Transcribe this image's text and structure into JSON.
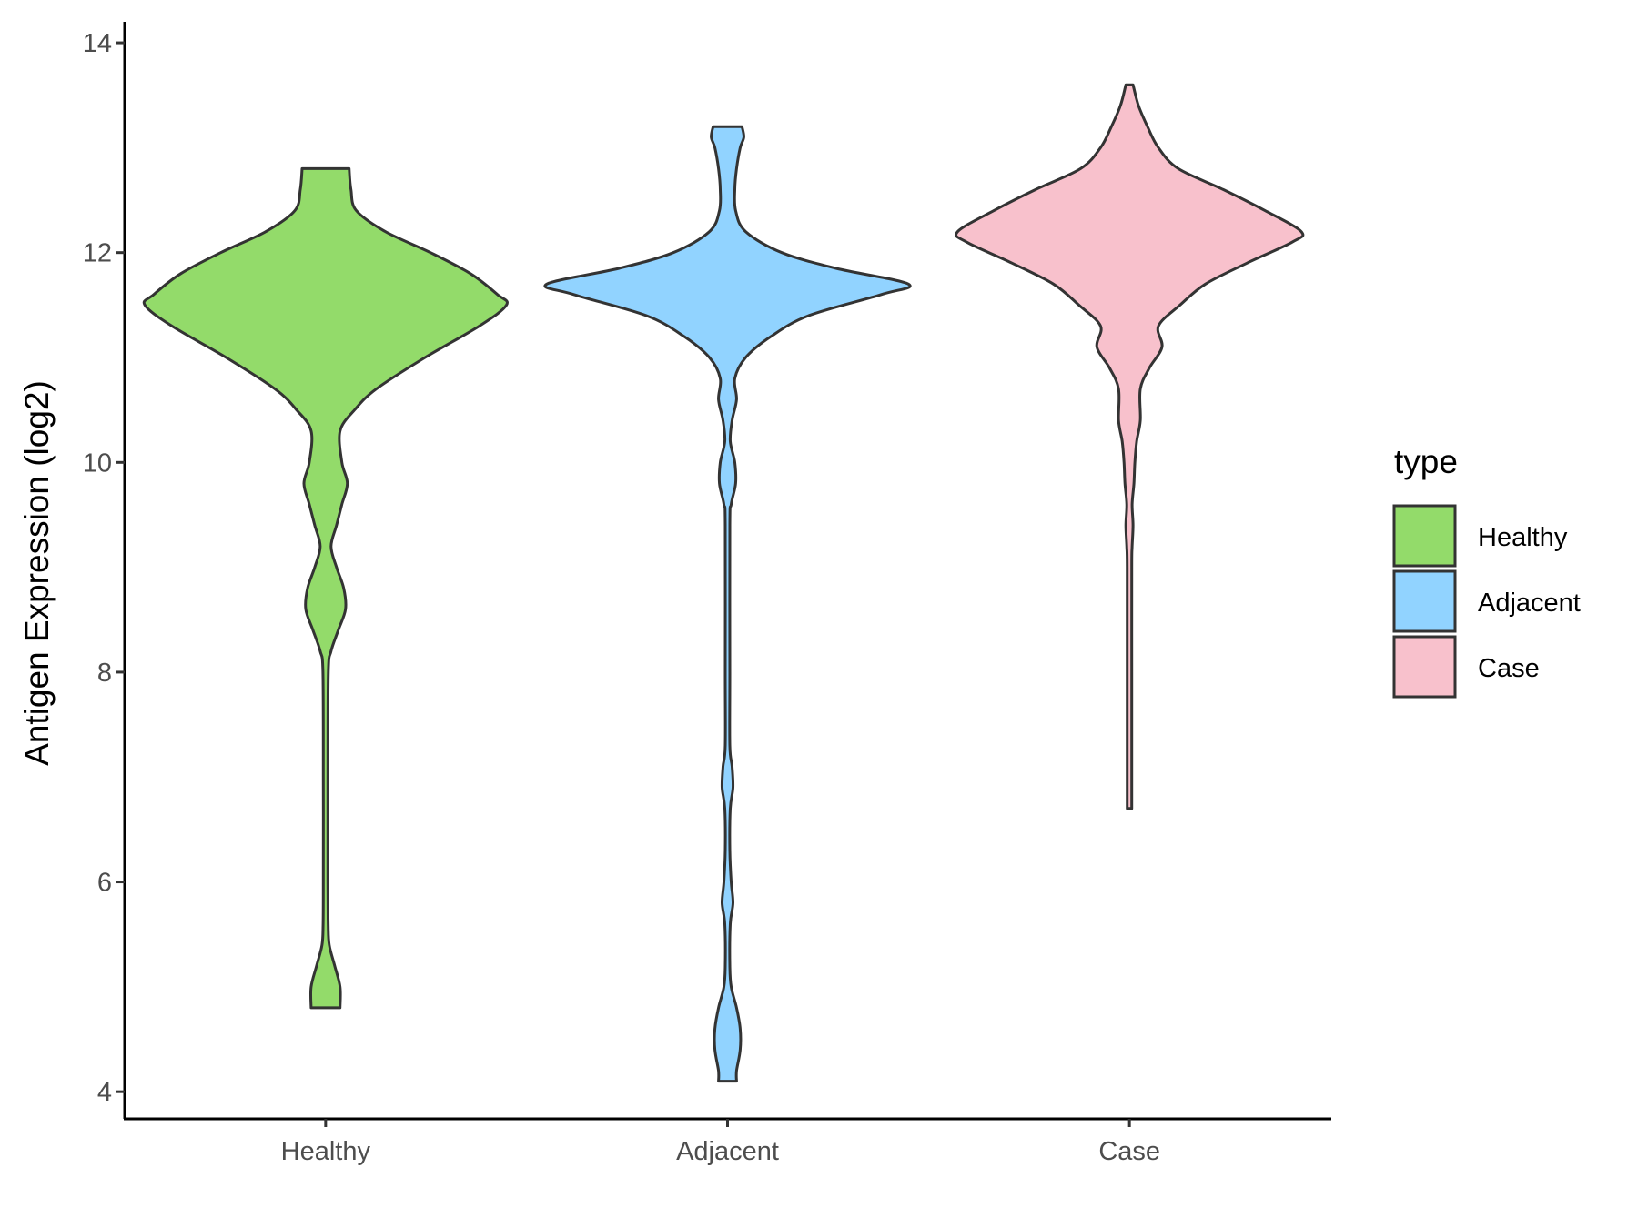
{
  "chart_data": {
    "type": "violin",
    "title": "",
    "xlabel": "",
    "ylabel": "Antigen Expression (log2)",
    "ylim": [
      3.75,
      14.2
    ],
    "yticks": [
      4,
      6,
      8,
      10,
      12,
      14
    ],
    "categories": [
      "Healthy",
      "Adjacent",
      "Case"
    ],
    "legend": {
      "title": "type",
      "placement": "right",
      "entries": [
        {
          "label": "Healthy",
          "color": "#93DB6A"
        },
        {
          "label": "Adjacent",
          "color": "#91D3FF"
        },
        {
          "label": "Case",
          "color": "#F8C1CC"
        }
      ]
    },
    "series": [
      {
        "category": "Healthy",
        "color": "#93DB6A",
        "range": [
          4.8,
          12.8
        ],
        "profile": [
          [
            12.8,
            0.13
          ],
          [
            12.6,
            0.14
          ],
          [
            12.4,
            0.17
          ],
          [
            12.2,
            0.33
          ],
          [
            12.0,
            0.58
          ],
          [
            11.8,
            0.8
          ],
          [
            11.6,
            0.95
          ],
          [
            11.5,
            1.0
          ],
          [
            11.3,
            0.85
          ],
          [
            11.0,
            0.55
          ],
          [
            10.7,
            0.28
          ],
          [
            10.5,
            0.16
          ],
          [
            10.3,
            0.08
          ],
          [
            10.0,
            0.09
          ],
          [
            9.8,
            0.12
          ],
          [
            9.6,
            0.09
          ],
          [
            9.4,
            0.06
          ],
          [
            9.2,
            0.03
          ],
          [
            9.0,
            0.06
          ],
          [
            8.8,
            0.1
          ],
          [
            8.6,
            0.11
          ],
          [
            8.4,
            0.07
          ],
          [
            8.2,
            0.03
          ],
          [
            8.0,
            0.015
          ],
          [
            7.0,
            0.012
          ],
          [
            6.0,
            0.012
          ],
          [
            5.6,
            0.014
          ],
          [
            5.4,
            0.02
          ],
          [
            5.2,
            0.05
          ],
          [
            5.0,
            0.08
          ],
          [
            4.8,
            0.08
          ]
        ]
      },
      {
        "category": "Adjacent",
        "color": "#91D3FF",
        "range": [
          4.1,
          13.2
        ],
        "profile": [
          [
            13.2,
            0.08
          ],
          [
            13.1,
            0.09
          ],
          [
            13.0,
            0.07
          ],
          [
            12.8,
            0.05
          ],
          [
            12.6,
            0.04
          ],
          [
            12.4,
            0.045
          ],
          [
            12.2,
            0.1
          ],
          [
            12.0,
            0.3
          ],
          [
            11.85,
            0.6
          ],
          [
            11.7,
            1.0
          ],
          [
            11.6,
            0.85
          ],
          [
            11.4,
            0.45
          ],
          [
            11.2,
            0.24
          ],
          [
            11.0,
            0.1
          ],
          [
            10.8,
            0.04
          ],
          [
            10.6,
            0.05
          ],
          [
            10.4,
            0.025
          ],
          [
            10.2,
            0.015
          ],
          [
            10.0,
            0.04
          ],
          [
            9.8,
            0.045
          ],
          [
            9.6,
            0.02
          ],
          [
            9.4,
            0.01
          ],
          [
            8.0,
            0.01
          ],
          [
            7.3,
            0.012
          ],
          [
            7.1,
            0.025
          ],
          [
            6.9,
            0.03
          ],
          [
            6.7,
            0.015
          ],
          [
            6.3,
            0.01
          ],
          [
            6.0,
            0.02
          ],
          [
            5.8,
            0.03
          ],
          [
            5.6,
            0.015
          ],
          [
            5.2,
            0.012
          ],
          [
            5.0,
            0.02
          ],
          [
            4.8,
            0.05
          ],
          [
            4.6,
            0.07
          ],
          [
            4.4,
            0.07
          ],
          [
            4.2,
            0.05
          ],
          [
            4.1,
            0.05
          ]
        ]
      },
      {
        "category": "Case",
        "color": "#F8C1CC",
        "range": [
          6.7,
          13.6
        ],
        "profile": [
          [
            13.6,
            0.02
          ],
          [
            13.4,
            0.05
          ],
          [
            13.2,
            0.1
          ],
          [
            13.0,
            0.16
          ],
          [
            12.8,
            0.27
          ],
          [
            12.6,
            0.52
          ],
          [
            12.4,
            0.75
          ],
          [
            12.2,
            0.95
          ],
          [
            12.1,
            0.9
          ],
          [
            11.9,
            0.65
          ],
          [
            11.7,
            0.42
          ],
          [
            11.5,
            0.28
          ],
          [
            11.3,
            0.16
          ],
          [
            11.1,
            0.18
          ],
          [
            10.9,
            0.11
          ],
          [
            10.7,
            0.06
          ],
          [
            10.4,
            0.06
          ],
          [
            10.2,
            0.04
          ],
          [
            10.0,
            0.03
          ],
          [
            9.8,
            0.025
          ],
          [
            9.6,
            0.015
          ],
          [
            9.4,
            0.02
          ],
          [
            9.2,
            0.015
          ],
          [
            9.0,
            0.008
          ],
          [
            8.0,
            0.007
          ],
          [
            7.0,
            0.007
          ],
          [
            6.8,
            0.01
          ],
          [
            6.7,
            0.01
          ]
        ]
      }
    ]
  }
}
